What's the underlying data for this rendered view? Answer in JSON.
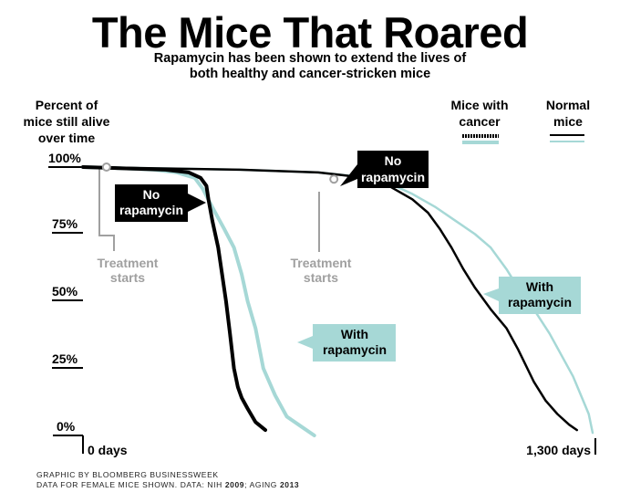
{
  "chart_data": {
    "type": "line",
    "title": "The Mice That Roared",
    "subtitle_line1": "Rapamycin has been shown to extend the lives of",
    "subtitle_line2": "both healthy and cancer-stricken mice",
    "ylabel_lines": [
      "Percent of",
      "mice still alive",
      "over time"
    ],
    "y_ticks": [
      "100%",
      "75%",
      "50%",
      "25%",
      "0%"
    ],
    "y_tick_values": [
      100,
      75,
      50,
      25,
      0
    ],
    "x_tick_start": "0 days",
    "x_tick_end": "1,300 days",
    "xlim": [
      0,
      1300
    ],
    "ylim": [
      0,
      100
    ],
    "legend": {
      "cancer_label_lines": [
        "Mice with",
        "cancer"
      ],
      "normal_label_lines": [
        "Normal",
        "mice"
      ]
    },
    "colors": {
      "no_rapamycin": "#000000",
      "with_rapamycin": "#a6d8d6",
      "treatment": "#a0a0a0"
    },
    "series": [
      {
        "group": "cancer",
        "treatment": "no_rapamycin",
        "x": [
          0,
          110,
          210,
          270,
          300,
          315,
          320,
          330,
          345,
          355,
          365,
          375,
          385,
          395,
          405,
          420,
          440,
          465
        ],
        "y": [
          100,
          99.5,
          99,
          98,
          96,
          93,
          88,
          80,
          70,
          60,
          50,
          38,
          25,
          18,
          14,
          10,
          5,
          2
        ]
      },
      {
        "group": "cancer",
        "treatment": "with_rapamycin",
        "x": [
          0,
          110,
          180,
          240,
          285,
          305,
          330,
          360,
          385,
          405,
          420,
          440,
          460,
          490,
          520,
          560,
          590
        ],
        "y": [
          100,
          99.5,
          99,
          98,
          96,
          92,
          85,
          77,
          70,
          60,
          50,
          40,
          25,
          15,
          7,
          3,
          0
        ]
      },
      {
        "group": "normal",
        "treatment": "no_rapamycin",
        "x": [
          0,
          200,
          400,
          600,
          660,
          720,
          780,
          840,
          880,
          910,
          940,
          970,
          1000,
          1040,
          1080,
          1110,
          1150,
          1180,
          1210,
          1240,
          1260
        ],
        "y": [
          100,
          99.5,
          99,
          98,
          97,
          96,
          93,
          88,
          83,
          77,
          70,
          62,
          55,
          47,
          40,
          32,
          20,
          13,
          8,
          4,
          2
        ]
      },
      {
        "group": "normal",
        "treatment": "with_rapamycin",
        "x": [
          0,
          400,
          600,
          700,
          780,
          840,
          900,
          950,
          1000,
          1040,
          1080,
          1110,
          1150,
          1190,
          1220,
          1250,
          1270,
          1290,
          1300
        ],
        "y": [
          100,
          99,
          98,
          96.5,
          94,
          90,
          85,
          80,
          75,
          70,
          62,
          55,
          47,
          38,
          30,
          22,
          15,
          8,
          1
        ]
      }
    ],
    "annotations": [
      {
        "id": "cancer-no-rap",
        "lines": [
          "No",
          "rapamycin"
        ],
        "style": "black"
      },
      {
        "id": "cancer-with-rap",
        "lines": [
          "With",
          "rapamycin"
        ],
        "style": "teal"
      },
      {
        "id": "normal-no-rap",
        "lines": [
          "No",
          "rapamycin"
        ],
        "style": "black"
      },
      {
        "id": "normal-with-rap",
        "lines": [
          "With",
          "rapamycin"
        ],
        "style": "teal"
      },
      {
        "id": "treatment-cancer",
        "lines": [
          "Treatment",
          "starts"
        ],
        "day": 60,
        "percent": 100
      },
      {
        "id": "treatment-normal",
        "lines": [
          "Treatment",
          "starts"
        ],
        "day": 640,
        "percent": 95.5
      }
    ]
  },
  "footer_line1": "GRAPHIC BY BLOOMBERG BUSINESSWEEK",
  "footer_line2_prefix": "DATA FOR FEMALE MICE SHOWN. DATA: NIH ",
  "footer_year1": "2009",
  "footer_mid": "; AGING ",
  "footer_year2": "2013"
}
